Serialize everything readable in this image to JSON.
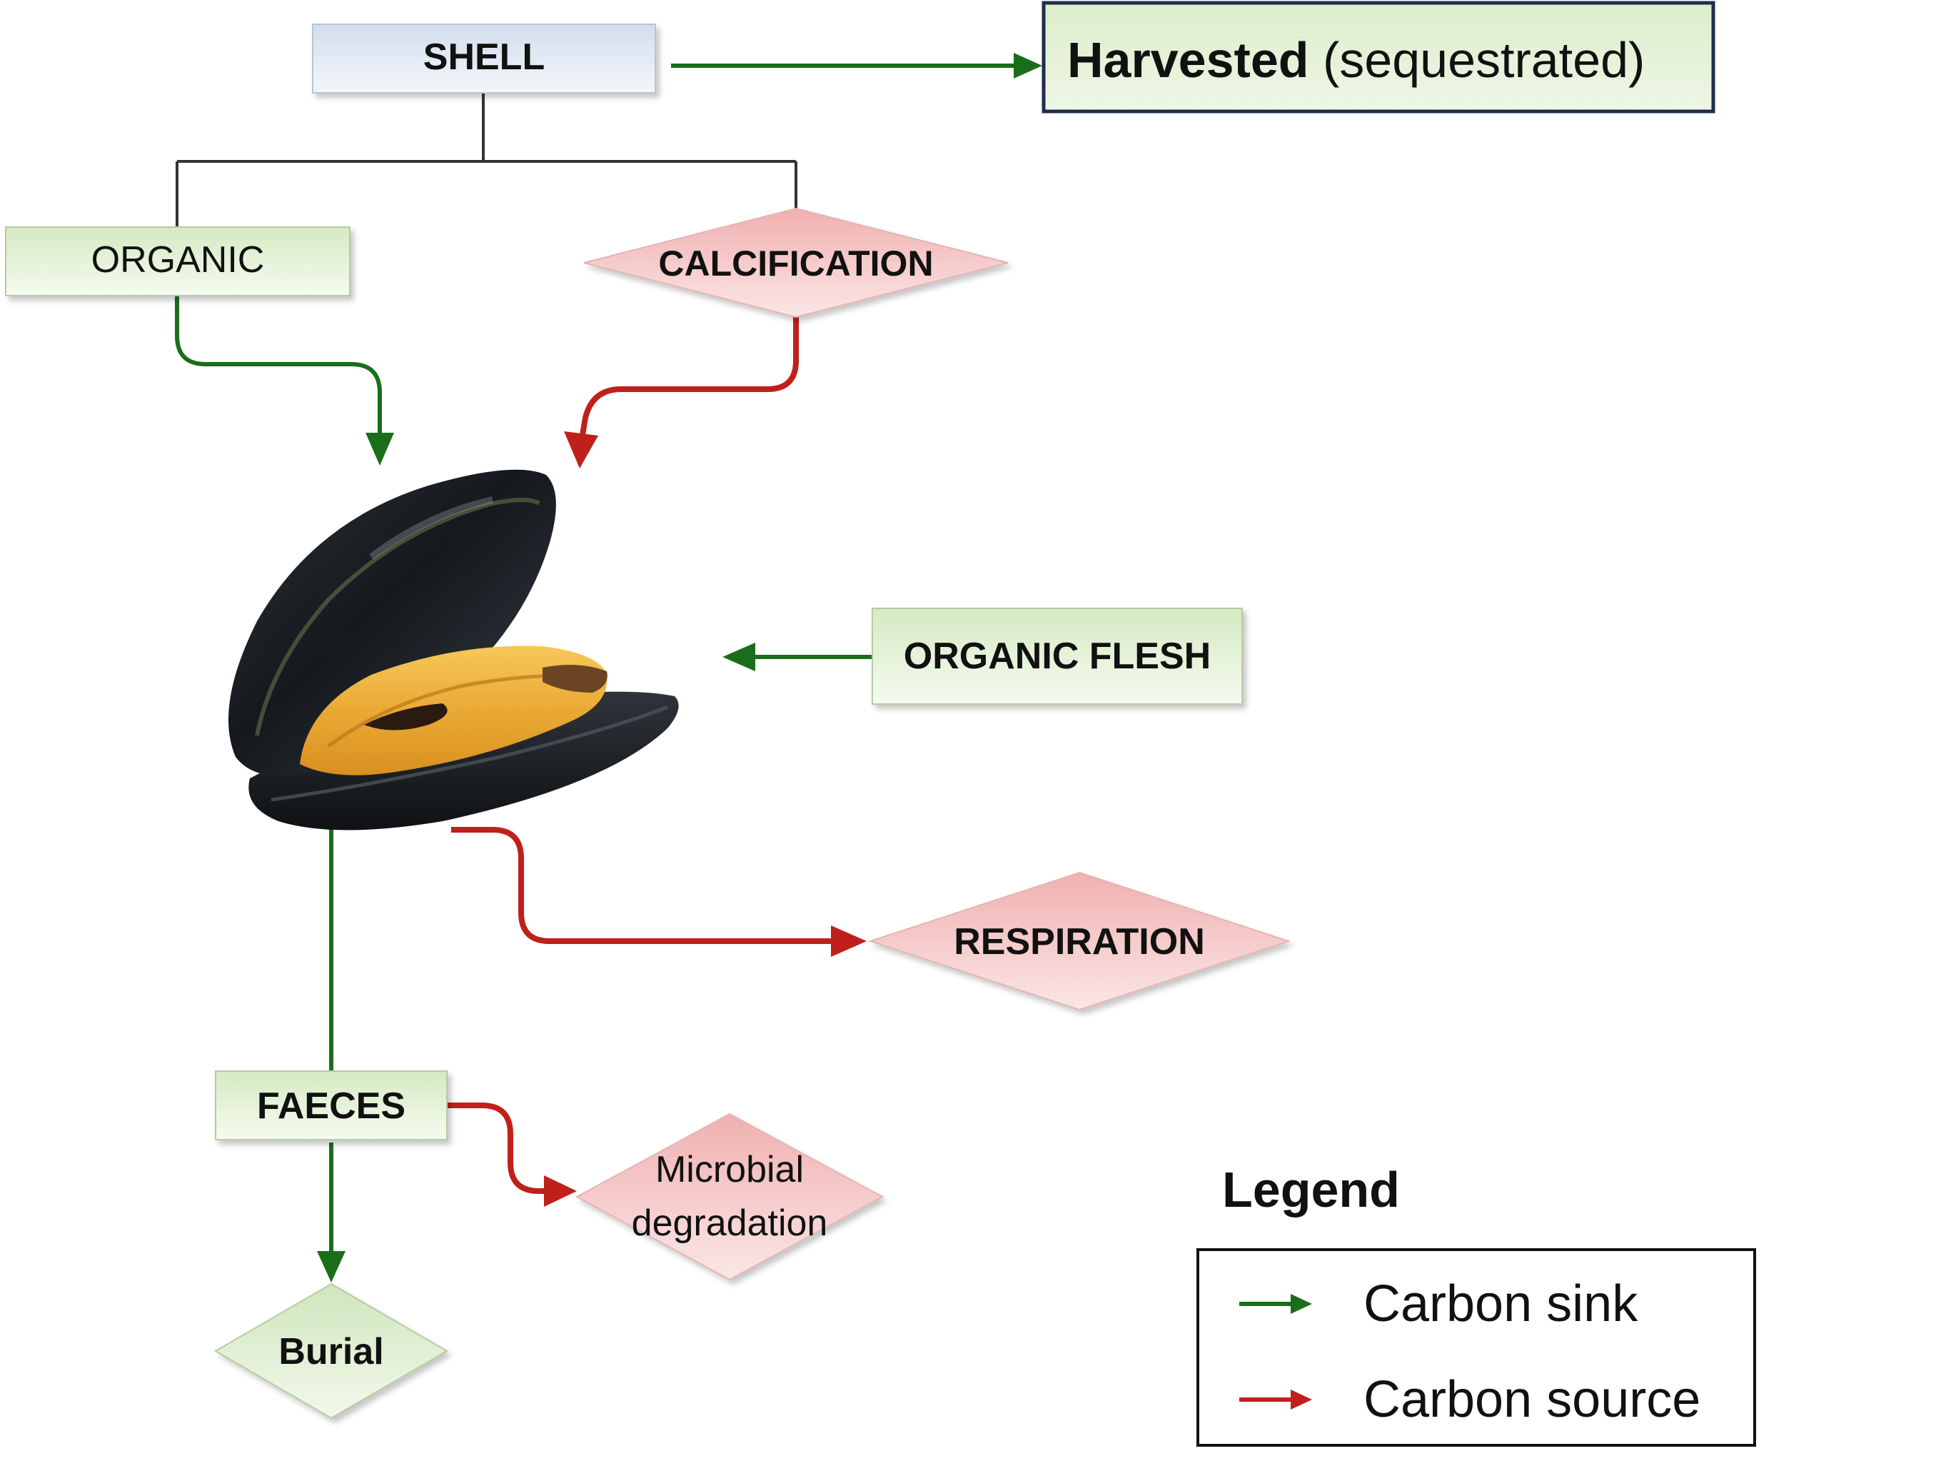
{
  "nodes": {
    "shell": "SHELL",
    "harvested_bold": "Harvested",
    "harvested_rest": " (sequestrated)",
    "organic": "ORGANIC",
    "calcification": "CALCIFICATION",
    "organic_flesh": "ORGANIC FLESH",
    "respiration": "RESPIRATION",
    "faeces": "FAECES",
    "microbial_line1": "Microbial",
    "microbial_line2": "degradation",
    "burial": "Burial"
  },
  "legend": {
    "title": "Legend",
    "sink_label": "Carbon sink",
    "source_label": "Carbon source"
  },
  "colors": {
    "sink": "#1a6e1a",
    "source": "#c0201a",
    "green_box_top": "#d9ecc9",
    "green_box_bottom": "#f4faef",
    "red_diamond_top": "#f2b8b8",
    "red_diamond_bottom": "#fbe3e3",
    "shell_box_top": "#d6e2ef",
    "shell_box_bottom": "#f1f5f9",
    "connector": "#333333"
  },
  "icons": {
    "illustration": "mussel-illustration"
  }
}
